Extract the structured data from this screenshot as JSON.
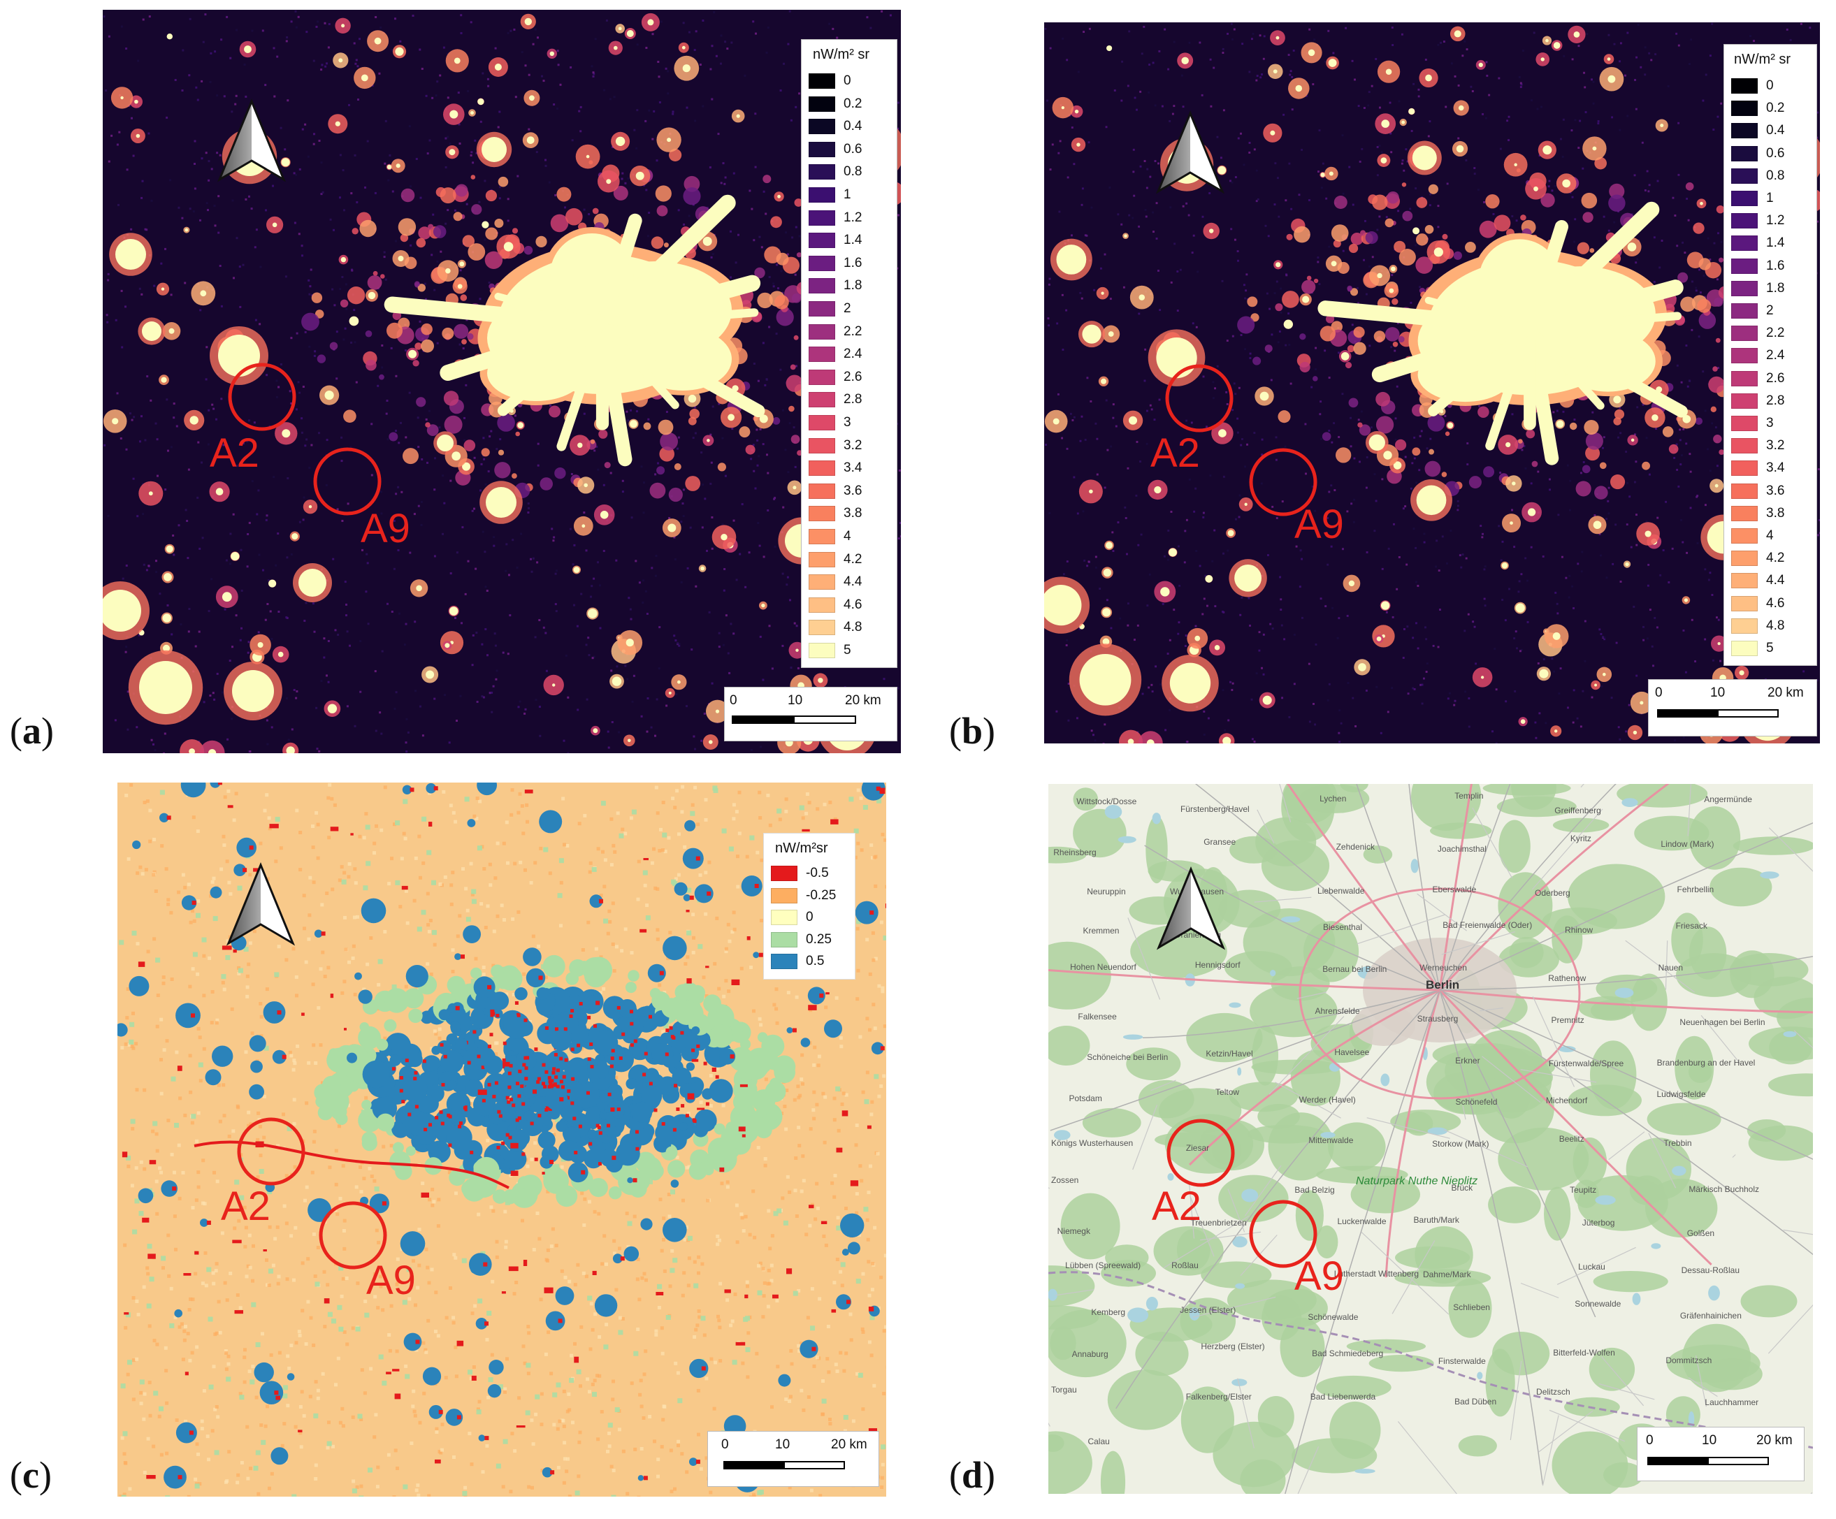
{
  "figure": {
    "panels": [
      {
        "id": "a",
        "label": "a",
        "title": "nW/m² sr",
        "type": "radiance"
      },
      {
        "id": "b",
        "label": "b",
        "title": "nW/m² sr",
        "type": "radiance"
      },
      {
        "id": "c",
        "label": "c",
        "title": "nW/m²sr",
        "type": "difference"
      },
      {
        "id": "d",
        "label": "d",
        "type": "basemap"
      }
    ],
    "annotations": [
      {
        "name": "A2"
      },
      {
        "name": "A9"
      }
    ],
    "scalebar": {
      "ticks": [
        "0",
        "10",
        "20 km"
      ]
    }
  },
  "colors": {
    "annotation_red": "#e8231c",
    "night_background": "#16062e"
  },
  "legend_radiance": [
    {
      "value": "0",
      "color": "#000004"
    },
    {
      "value": "0.2",
      "color": "#02020f"
    },
    {
      "value": "0.4",
      "color": "#0b0724"
    },
    {
      "value": "0.6",
      "color": "#1a0c3e"
    },
    {
      "value": "0.8",
      "color": "#2a0f57"
    },
    {
      "value": "1",
      "color": "#3b0f70"
    },
    {
      "value": "1.2",
      "color": "#4b1378"
    },
    {
      "value": "1.4",
      "color": "#5b187e"
    },
    {
      "value": "1.6",
      "color": "#6b1d81"
    },
    {
      "value": "1.8",
      "color": "#7c2382"
    },
    {
      "value": "2",
      "color": "#8c2981"
    },
    {
      "value": "2.2",
      "color": "#9d2f7f"
    },
    {
      "value": "2.4",
      "color": "#ad347c"
    },
    {
      "value": "2.6",
      "color": "#be3a77"
    },
    {
      "value": "2.8",
      "color": "#ce4071"
    },
    {
      "value": "3",
      "color": "#de4968"
    },
    {
      "value": "3.2",
      "color": "#e95462"
    },
    {
      "value": "3.4",
      "color": "#f1605d"
    },
    {
      "value": "3.6",
      "color": "#f6705c"
    },
    {
      "value": "3.8",
      "color": "#f9805e"
    },
    {
      "value": "4",
      "color": "#fc9065"
    },
    {
      "value": "4.2",
      "color": "#fd9f6c"
    },
    {
      "value": "4.4",
      "color": "#feaf77"
    },
    {
      "value": "4.6",
      "color": "#febf84"
    },
    {
      "value": "4.8",
      "color": "#fecf92"
    },
    {
      "value": "5",
      "color": "#fcfdbf"
    }
  ],
  "legend_difference": [
    {
      "value": "-0.5",
      "color": "#e41a1c"
    },
    {
      "value": "-0.25",
      "color": "#fdae61"
    },
    {
      "value": "0",
      "color": "#ffffbf"
    },
    {
      "value": "0.25",
      "color": "#abdda4"
    },
    {
      "value": "0.5",
      "color": "#2b83ba"
    }
  ],
  "basemap_places": [
    "Wittstock/Dosse",
    "Fürstenberg/Havel",
    "Lychen",
    "Templin",
    "Greiffenberg",
    "Angermünde",
    "Rheinsberg",
    "Gransee",
    "Zehdenick",
    "Joachimsthal",
    "Kyritz",
    "Lindow (Mark)",
    "Neuruppin",
    "Wusterhausen",
    "Liebenwalde",
    "Eberswalde",
    "Oderberg",
    "Fehrbellin",
    "Kremmen",
    "Oranienburg",
    "Biesenthal",
    "Bad Freienwalde (Oder)",
    "Rhinow",
    "Friesack",
    "Hohen Neuendorf",
    "Hennigsdorf",
    "Bernau bei Berlin",
    "Werneuchen",
    "Rathenow",
    "Nauen",
    "Falkensee",
    "Berlin",
    "Ahrensfelde",
    "Strausberg",
    "Premnitz",
    "Neuenhagen bei Berlin",
    "Schöneiche bei Berlin",
    "Ketzin/Havel",
    "Havelsee",
    "Erkner",
    "Fürstenwalde/Spree",
    "Brandenburg an der Havel",
    "Potsdam",
    "Teltow",
    "Werder (Havel)",
    "Schönefeld",
    "Michendorf",
    "Ludwigsfelde",
    "Königs Wusterhausen",
    "Ziesar",
    "Mittenwalde",
    "Storkow (Mark)",
    "Beelitz",
    "Trebbin",
    "Zossen",
    "Naturpark Nuthe Nieplitz",
    "Bad Belzig",
    "Brück",
    "Teupitz",
    "Märkisch Buchholz",
    "Niemegk",
    "Treuenbrietzen",
    "Luckenwalde",
    "Baruth/Mark",
    "Jüterbog",
    "Golßen",
    "Lübben (Spreewald)",
    "Roßlau",
    "Lutherstadt Wittenberg",
    "Dahme/Mark",
    "Luckau",
    "Dessau-Roßlau",
    "Kemberg",
    "Jessen (Elster)",
    "Schönewalde",
    "Schlieben",
    "Sonnewalde",
    "Gräfenhainichen",
    "Annaburg",
    "Herzberg (Elster)",
    "Bad Schmiedeberg",
    "Finsterwalde",
    "Bitterfeld-Wolfen",
    "Dommitzsch",
    "Torgau",
    "Falkenberg/Elster",
    "Bad Liebenwerda",
    "Bad Düben",
    "Delitzsch",
    "Lauchhammer",
    "Calau"
  ]
}
